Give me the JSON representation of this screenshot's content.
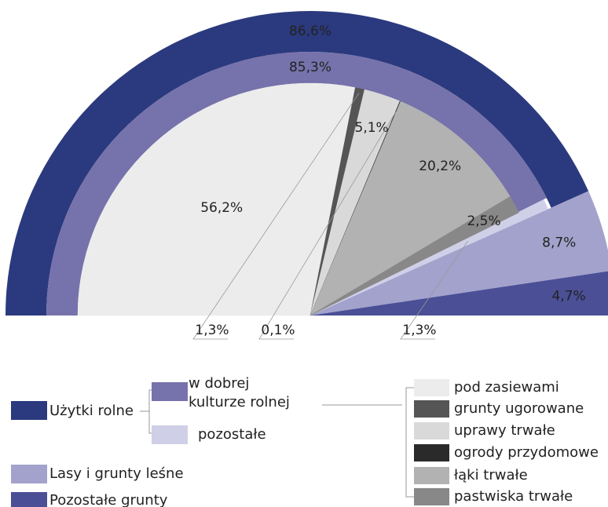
{
  "chart_data": {
    "type": "nested_semi_donut",
    "outer": {
      "categories": [
        "Użytki rolne",
        "Lasy i grunty leśne",
        "Pozostałe grunty"
      ],
      "values": [
        86.6,
        8.7,
        4.7
      ],
      "value_labels": [
        "86,6%",
        "8,7%",
        "4,7%"
      ],
      "colors": [
        "#2b3a7e",
        "#a3a2cc",
        "#4a4f96"
      ]
    },
    "middle": {
      "categories": [
        "w dobrej kulturze rolnej",
        "pozostałe"
      ],
      "values": [
        85.3,
        1.3
      ],
      "value_labels": [
        "85,3%",
        "1,3%"
      ],
      "colors": [
        "#7672ab",
        "#d0cfe8"
      ]
    },
    "inner": {
      "categories": [
        "pod zasiewami",
        "grunty ugorowane",
        "uprawy trwałe",
        "ogrody przydomowe",
        "łąki trwałe",
        "pastwiska trwałe"
      ],
      "values": [
        56.2,
        1.3,
        5.1,
        0.1,
        20.2,
        2.5
      ],
      "value_labels": [
        "56,2%",
        "1,3%",
        "5,1%",
        "0,1%",
        "20,2%",
        "2,5%"
      ],
      "colors": [
        "#ececec",
        "#555555",
        "#d9d9d9",
        "#2a2a2a",
        "#b2b2b2",
        "#888888"
      ]
    }
  }
}
